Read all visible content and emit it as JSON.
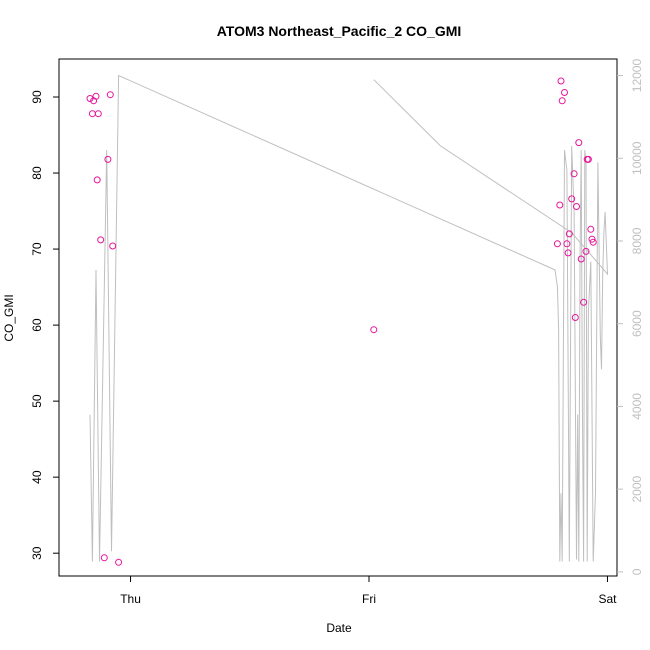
{
  "chart_data": {
    "type": "scatter",
    "title": "ATOM3 Northeast_Pacific_2 CO_GMI",
    "xlabel": "Date",
    "ylabel": "CO_GMI",
    "x_ticks": [
      "Thu",
      "Fri",
      "Sat"
    ],
    "x_tick_days": [
      0,
      1,
      2
    ],
    "xlim_days": [
      -0.3,
      2.04
    ],
    "ylim": [
      27,
      95
    ],
    "y_ticks": [
      30,
      40,
      50,
      60,
      70,
      80,
      90
    ],
    "y2lim": [
      -100,
      12400
    ],
    "y2_ticks": [
      0,
      2000,
      4000,
      6000,
      8000,
      10000,
      12000
    ],
    "grid": false,
    "colors": {
      "points": "#e6169b",
      "line": "#bfbfbf"
    },
    "series": [
      {
        "type": "points",
        "axis": "left",
        "x_days": [
          -0.17,
          -0.16,
          -0.155,
          -0.14,
          -0.145,
          -0.135,
          -0.125,
          -0.11,
          -0.095,
          -0.085,
          -0.075,
          -0.05,
          1.02,
          1.79,
          1.8,
          1.805,
          1.81,
          1.82,
          1.83,
          1.835,
          1.84,
          1.85,
          1.86,
          1.865,
          1.87,
          1.88,
          1.89,
          1.9,
          1.91,
          1.915,
          1.92,
          1.93,
          1.935,
          1.94
        ],
        "values": [
          89.8,
          87.8,
          89.5,
          79.1,
          90.1,
          87.8,
          71.2,
          29.4,
          81.8,
          90.3,
          70.4,
          28.8,
          59.4,
          70.7,
          75.8,
          92.1,
          89.5,
          90.6,
          70.7,
          69.5,
          72.0,
          76.6,
          79.9,
          61.0,
          75.6,
          84.0,
          68.7,
          63.0,
          69.7,
          81.8,
          81.8,
          72.6,
          71.3,
          70.9
        ]
      },
      {
        "type": "line",
        "axis": "right",
        "x_days": [
          -0.17,
          -0.16,
          -0.145,
          -0.13,
          -0.1,
          -0.08,
          -0.05,
          1.78,
          1.79,
          1.795,
          1.8,
          1.805,
          1.81,
          1.82,
          1.83,
          1.84,
          1.85,
          1.86,
          1.87,
          1.875,
          1.88,
          1.885,
          1.89,
          1.895,
          1.9,
          1.905,
          1.91,
          1.915,
          1.92,
          1.93,
          1.94,
          1.95,
          1.96,
          1.97,
          1.975,
          1.98,
          1.985,
          1.99,
          2.0,
          2.0,
          1.85,
          1.3,
          1.02
        ],
        "values": [
          3800,
          250,
          7300,
          250,
          10200,
          500,
          12000,
          7300,
          6900,
          5900,
          250,
          1900,
          250,
          10200,
          9700,
          250,
          10300,
          8700,
          300,
          3800,
          250,
          7500,
          10200,
          4000,
          250,
          10200,
          9900,
          250,
          6300,
          7500,
          250,
          1900,
          9900,
          5700,
          4900,
          7200,
          8200,
          8700,
          7200,
          7200,
          8200,
          10300,
          11900
        ]
      }
    ]
  }
}
